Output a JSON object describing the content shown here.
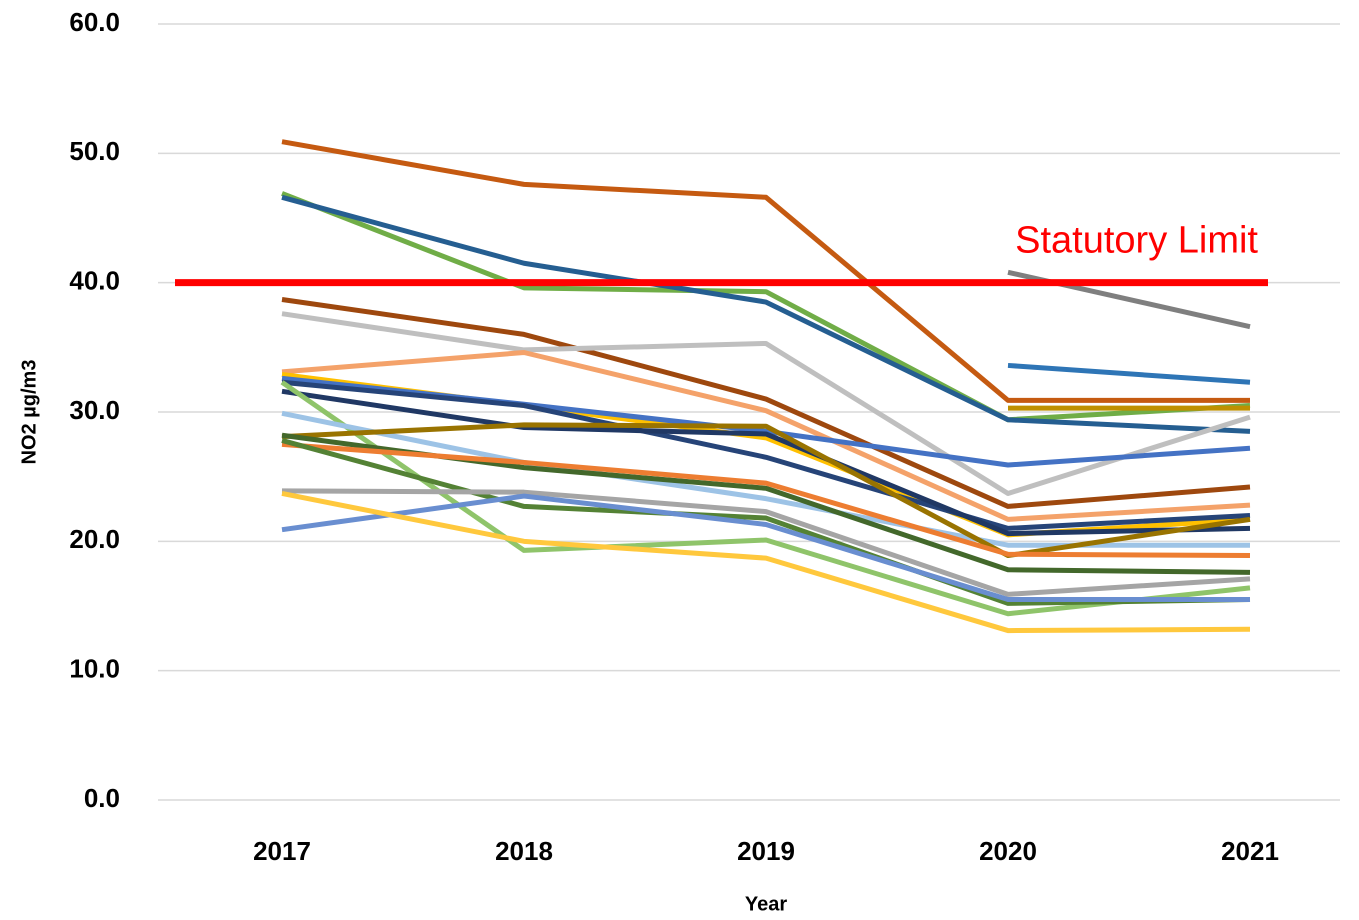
{
  "chart_data": {
    "type": "line",
    "xlabel": "Year",
    "ylabel": "NO2 µg/m3",
    "categories": [
      "2017",
      "2018",
      "2019",
      "2020",
      "2021"
    ],
    "ylim": [
      0,
      60
    ],
    "yticks": [
      {
        "value": 0,
        "label": "0.0"
      },
      {
        "value": 10,
        "label": "10.0"
      },
      {
        "value": 20,
        "label": "20.0"
      },
      {
        "value": 30,
        "label": "30.0"
      },
      {
        "value": 40,
        "label": "40.0"
      },
      {
        "value": 50,
        "label": "50.0"
      },
      {
        "value": 60,
        "label": "60.0"
      }
    ],
    "grid": true,
    "reference_line": {
      "value": 40,
      "label": "Statutory Limit",
      "color": "#ff0000"
    },
    "series": [
      {
        "color": "#c55a11",
        "values": [
          50.9,
          47.6,
          46.6,
          30.9,
          30.9
        ]
      },
      {
        "color": "#70ad47",
        "values": [
          46.9,
          39.6,
          39.3,
          29.4,
          30.5
        ]
      },
      {
        "color": "#255e91",
        "values": [
          46.6,
          41.5,
          38.5,
          29.4,
          28.5
        ]
      },
      {
        "color": "#9e480e",
        "values": [
          38.7,
          36.0,
          31.0,
          22.7,
          24.2
        ]
      },
      {
        "color": "#bfbfbf",
        "values": [
          37.6,
          34.8,
          35.3,
          23.7,
          29.6
        ]
      },
      {
        "color": "#f4a26a",
        "values": [
          33.1,
          34.6,
          30.1,
          21.7,
          22.8
        ]
      },
      {
        "color": "#ffc000",
        "values": [
          32.9,
          30.5,
          28.0,
          20.5,
          21.7
        ]
      },
      {
        "color": "#4472c4",
        "values": [
          32.6,
          30.6,
          28.5,
          25.9,
          27.2
        ]
      },
      {
        "color": "#264478",
        "values": [
          32.3,
          30.5,
          26.5,
          21.0,
          22.0
        ]
      },
      {
        "color": "#203864",
        "values": [
          31.6,
          28.8,
          28.3,
          20.6,
          21.0
        ]
      },
      {
        "color": "#8fc46a",
        "values": [
          32.3,
          19.3,
          20.1,
          14.4,
          16.4
        ]
      },
      {
        "color": "#9dc3e6",
        "values": [
          29.9,
          26.1,
          23.3,
          19.7,
          19.7
        ]
      },
      {
        "color": "#997300",
        "values": [
          28.1,
          29.0,
          28.9,
          18.9,
          21.7
        ]
      },
      {
        "color": "#43682b",
        "values": [
          28.2,
          25.7,
          24.1,
          17.8,
          17.6
        ]
      },
      {
        "color": "#ed7d31",
        "values": [
          27.5,
          26.1,
          24.5,
          19.0,
          18.9
        ]
      },
      {
        "color": "#548235",
        "values": [
          27.8,
          22.7,
          21.8,
          15.2,
          15.5
        ]
      },
      {
        "color": "#a5a5a5",
        "values": [
          23.9,
          23.8,
          22.3,
          15.9,
          17.1
        ]
      },
      {
        "color": "#698ed0",
        "values": [
          20.9,
          23.5,
          21.3,
          15.5,
          15.5
        ]
      },
      {
        "color": "#ffc83d",
        "values": [
          23.7,
          20.0,
          18.7,
          13.1,
          13.2
        ]
      },
      {
        "color": "#7f7f7f",
        "values": [
          null,
          null,
          null,
          40.8,
          36.6
        ]
      },
      {
        "color": "#2e75b6",
        "values": [
          null,
          null,
          null,
          33.6,
          32.3
        ]
      },
      {
        "color": "#bf9000",
        "values": [
          null,
          null,
          null,
          30.3,
          30.3
        ]
      }
    ]
  }
}
